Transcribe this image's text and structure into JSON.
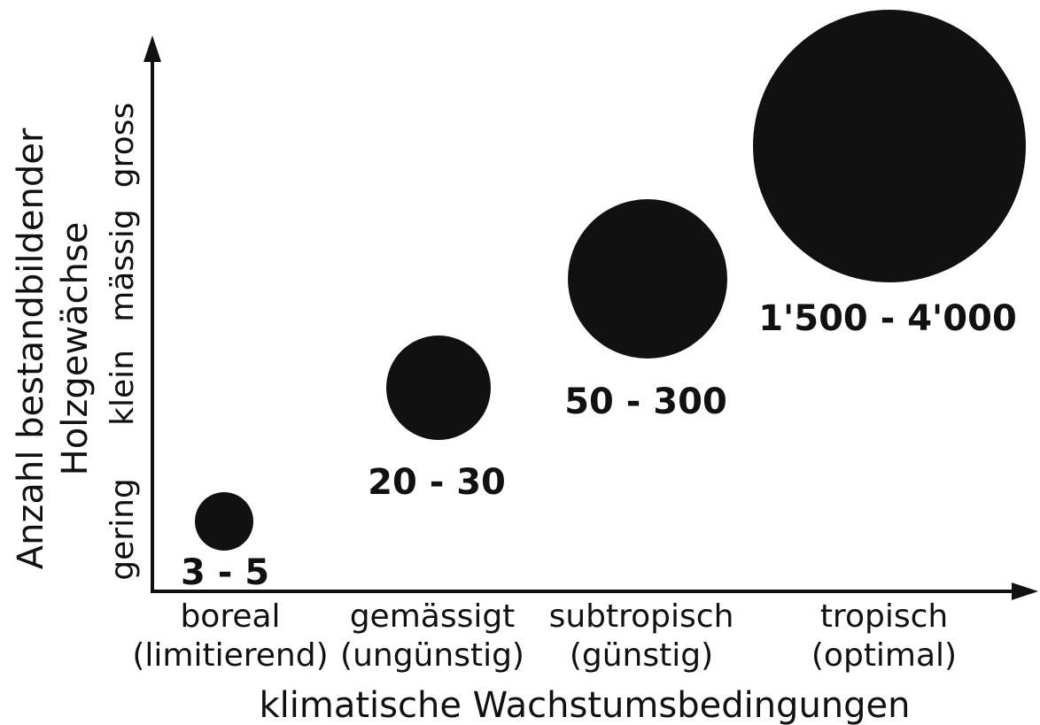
{
  "chart_data": {
    "type": "scatter",
    "title": "",
    "xlabel": "klimatische Wachstumsbedingungen",
    "ylabel_lines": [
      "Anzahl bestandbildender",
      "Holzgewächse"
    ],
    "y_scale_labels": [
      "gering",
      "klein",
      "mässig",
      "gross"
    ],
    "categories": [
      {
        "name": "boreal",
        "qualifier": "(limitierend)"
      },
      {
        "name": "gemässigt",
        "qualifier": "(ungünstig)"
      },
      {
        "name": "subtropisch",
        "qualifier": "(günstig)"
      },
      {
        "name": "tropisch",
        "qualifier": "(optimal)"
      }
    ],
    "points": [
      {
        "category": "boreal",
        "y_level": 1,
        "size_rank": 1,
        "label": "3 - 5",
        "min": 3,
        "max": 5
      },
      {
        "category": "gemässigt",
        "y_level": 2,
        "size_rank": 2,
        "label": "20 - 30",
        "min": 20,
        "max": 30
      },
      {
        "category": "subtropisch",
        "y_level": 3,
        "size_rank": 3,
        "label": "50 - 300",
        "min": 50,
        "max": 300
      },
      {
        "category": "tropisch",
        "y_level": 4,
        "size_rank": 4,
        "label": "1'500 - 4'000",
        "min": 1500,
        "max": 4000
      }
    ],
    "grid": false,
    "legend": "none",
    "marker_color": "#111111"
  }
}
